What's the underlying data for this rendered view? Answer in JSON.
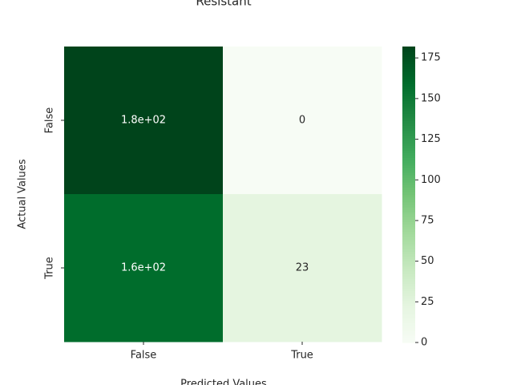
{
  "chart_data": {
    "type": "heatmap",
    "title": "Resistant",
    "xlabel": "Predicted Values",
    "ylabel": "Actual Values",
    "x_categories": [
      "False",
      "True"
    ],
    "y_categories": [
      "False",
      "True"
    ],
    "values": [
      [
        182,
        0
      ],
      [
        159,
        23
      ]
    ],
    "value_labels": [
      [
        "1.8e+02",
        "0"
      ],
      [
        "1.6e+02",
        "23"
      ]
    ],
    "colorscale": [
      "#f7fcf5",
      "#e5f5e0",
      "#c7e9c0",
      "#a1d99b",
      "#74c476",
      "#41ab5d",
      "#238b45",
      "#006d2c",
      "#00441b"
    ],
    "clim": [
      0,
      182
    ],
    "cticks": [
      0,
      25,
      50,
      75,
      100,
      125,
      150,
      175
    ]
  }
}
